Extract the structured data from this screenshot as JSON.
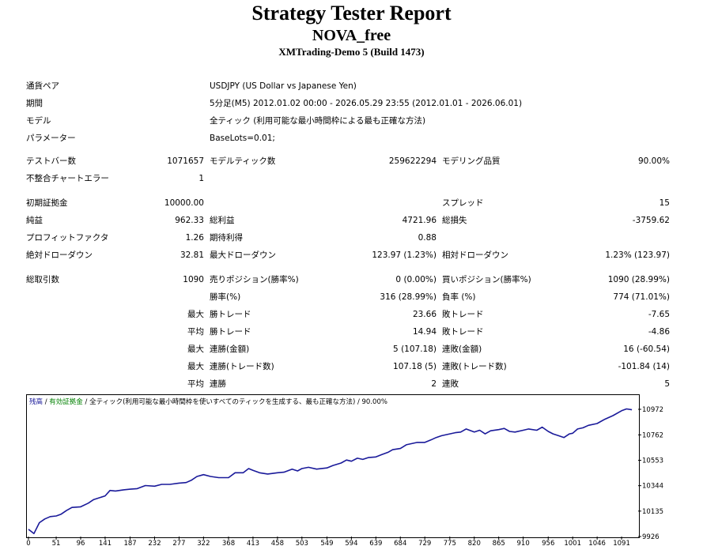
{
  "header": {
    "title": "Strategy Tester Report",
    "expert": "NOVA_free",
    "server": "XMTrading-Demo 5 (Build 1473)"
  },
  "settings": {
    "symbol_label": "通貨ペア",
    "symbol_value": "USDJPY (US Dollar vs Japanese Yen)",
    "period_label": "期間",
    "period_value": "5分足(M5) 2012.01.02 00:00 - 2026.05.29 23:55 (2012.01.01 - 2026.06.01)",
    "model_label": "モデル",
    "model_value": "全ティック (利用可能な最小時間枠による最も正確な方法)",
    "params_label": "パラメーター",
    "params_value": "BaseLots=0.01;"
  },
  "bars": {
    "bars_label": "テストバー数",
    "bars_value": "1071657",
    "ticks_label": "モデルティック数",
    "ticks_value": "259622294",
    "quality_label": "モデリング品質",
    "quality_value": "90.00%",
    "errors_label": "不整合チャートエラー",
    "errors_value": "1"
  },
  "results": {
    "deposit_label": "初期証拠金",
    "deposit_value": "10000.00",
    "spread_label": "スプレッド",
    "spread_value": "15",
    "net_label": "純益",
    "net_value": "962.33",
    "gross_profit_label": "総利益",
    "gross_profit_value": "4721.96",
    "gross_loss_label": "総損失",
    "gross_loss_value": "-3759.62",
    "pf_label": "プロフィットファクタ",
    "pf_value": "1.26",
    "expected_label": "期待利得",
    "expected_value": "0.88",
    "abs_dd_label": "絶対ドローダウン",
    "abs_dd_value": "32.81",
    "max_dd_label": "最大ドローダウン",
    "max_dd_value": "123.97 (1.23%)",
    "rel_dd_label": "相対ドローダウン",
    "rel_dd_value": "1.23% (123.97)"
  },
  "trades": {
    "total_label": "総取引数",
    "total_value": "1090",
    "short_label": "売りポジション(勝率%)",
    "short_value": "0 (0.00%)",
    "long_label": "買いポジション(勝率%)",
    "long_value": "1090 (28.99%)",
    "win_rate_label": "勝率(%)",
    "win_rate_value": "316 (28.99%)",
    "loss_rate_label": "負率 (%)",
    "loss_rate_value": "774 (71.01%)",
    "max_label": "最大",
    "avg_label": "平均",
    "largest_win_label": "勝トレード",
    "largest_win_value": "23.66",
    "largest_loss_label": "敗トレード",
    "largest_loss_value": "-7.65",
    "avg_win_label": "勝トレード",
    "avg_win_value": "14.94",
    "avg_loss_label": "敗トレード",
    "avg_loss_value": "-4.86",
    "max_consec_wins_label": "連勝(金額)",
    "max_consec_wins_value": "5 (107.18)",
    "max_consec_losses_label": "連敗(金額)",
    "max_consec_losses_value": "16 (-60.54)",
    "max_consec_profit_label": "連勝(トレード数)",
    "max_consec_profit_value": "107.18 (5)",
    "max_consec_loss_label": "連敗(トレード数)",
    "max_consec_loss_value": "-101.84 (14)",
    "avg_consec_wins_label": "連勝",
    "avg_consec_wins_value": "2",
    "avg_consec_losses_label": "連敗",
    "avg_consec_losses_value": "5"
  },
  "legend": {
    "balance": "残高",
    "sep1": " / ",
    "equity": "有効証拠金",
    "rest": " / 全ティック(利用可能な最小時間枠を使いすべてのティックを生成する、最も正確な方法) / 90.00%"
  },
  "chart_data": {
    "type": "line",
    "title": "",
    "xlabel": "",
    "ylabel": "",
    "x_ticks": [
      0,
      51,
      96,
      141,
      187,
      232,
      277,
      322,
      368,
      413,
      458,
      503,
      549,
      594,
      639,
      684,
      729,
      775,
      820,
      865,
      910,
      956,
      1001,
      1046,
      1091
    ],
    "y_ticks": [
      9926,
      10135,
      10344,
      10553,
      10762,
      10972
    ],
    "xlim": [
      0,
      1120
    ],
    "ylim": [
      9926,
      10972
    ],
    "series": [
      {
        "color": "#1a1a9a",
        "x": [
          0,
          10,
          20,
          30,
          40,
          51,
          60,
          70,
          80,
          96,
          110,
          120,
          141,
          150,
          160,
          175,
          187,
          200,
          215,
          232,
          245,
          260,
          277,
          290,
          300,
          310,
          322,
          335,
          350,
          368,
          380,
          395,
          405,
          413,
          425,
          440,
          458,
          470,
          485,
          495,
          503,
          515,
          530,
          549,
          560,
          575,
          585,
          594,
          605,
          615,
          625,
          639,
          650,
          662,
          670,
          684,
          695,
          705,
          715,
          729,
          740,
          750,
          760,
          775,
          785,
          795,
          805,
          820,
          830,
          840,
          850,
          865,
          875,
          885,
          895,
          910,
          920,
          935,
          945,
          956,
          965,
          975,
          985,
          995,
          1001,
          1010,
          1020,
          1030,
          1046,
          1060,
          1075,
          1091,
          1100,
          1110
        ],
        "y": [
          9985,
          9950,
          10040,
          10070,
          10090,
          10095,
          10110,
          10140,
          10165,
          10170,
          10200,
          10230,
          10260,
          10305,
          10300,
          10310,
          10315,
          10320,
          10345,
          10340,
          10355,
          10355,
          10365,
          10370,
          10390,
          10420,
          10435,
          10420,
          10410,
          10410,
          10450,
          10450,
          10485,
          10470,
          10450,
          10440,
          10450,
          10455,
          10480,
          10465,
          10485,
          10495,
          10480,
          10490,
          10510,
          10530,
          10555,
          10545,
          10570,
          10560,
          10575,
          10580,
          10600,
          10620,
          10640,
          10650,
          10680,
          10690,
          10700,
          10700,
          10720,
          10740,
          10755,
          10770,
          10780,
          10785,
          10810,
          10785,
          10800,
          10770,
          10795,
          10805,
          10815,
          10790,
          10785,
          10800,
          10810,
          10800,
          10825,
          10790,
          10770,
          10755,
          10740,
          10770,
          10775,
          10810,
          10820,
          10840,
          10855,
          10890,
          10920,
          10960,
          10975,
          10968
        ]
      }
    ]
  }
}
